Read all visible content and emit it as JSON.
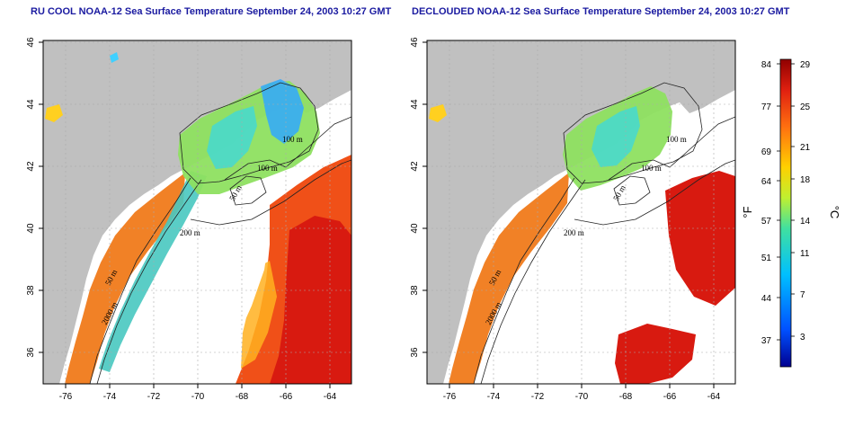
{
  "titles": {
    "left": "RU COOL NOAA-12 Sea Surface Temperature September 24, 2003 10:27 GMT",
    "right": "DECLOUDED NOAA-12 Sea Surface Temperature September 24, 2003 10:27 GMT"
  },
  "axes": {
    "x_ticks": [
      "-76",
      "-74",
      "-72",
      "-70",
      "-68",
      "-66",
      "-64"
    ],
    "y_ticks": [
      "46",
      "44",
      "42",
      "40",
      "38",
      "36"
    ],
    "lon_range": [
      -77,
      -63
    ],
    "lat_range": [
      35,
      46
    ]
  },
  "contour_labels": {
    "c100_upper": "100 m",
    "c100_lower": "100 m",
    "c50": "50 m",
    "c200": "200 m",
    "c50_shelf": "50 m",
    "c2000": "2000 m"
  },
  "colorbar": {
    "f_label": "°F",
    "c_label": "°C",
    "f_ticks": [
      "84",
      "77",
      "69",
      "64",
      "57",
      "51",
      "44",
      "37"
    ],
    "c_ticks": [
      "29",
      "25",
      "21",
      "18",
      "14",
      "11",
      "7",
      "3"
    ]
  },
  "colors": {
    "land": "#c0c0c0",
    "title": "#1a1aa0",
    "warm": "#e8501a",
    "hot": "#d81a10",
    "cold": "#30c8d8"
  }
}
